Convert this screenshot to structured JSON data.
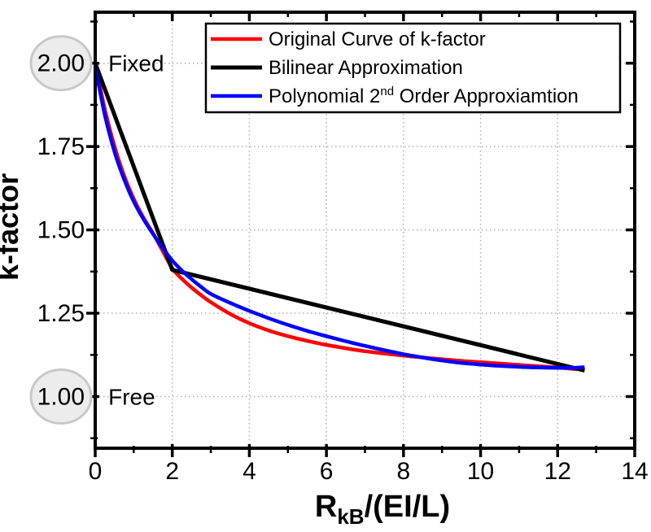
{
  "chart_data": {
    "type": "line",
    "title": "",
    "xlabel": "RkB/(EI/L)",
    "xlabel_parts": {
      "base": "R",
      "sub": "kB",
      "rest": "/(EI/L)"
    },
    "ylabel": "k-factor",
    "xlim": [
      0,
      14
    ],
    "ylim": [
      0.845,
      2.153
    ],
    "x_major_ticks": [
      0,
      2,
      4,
      6,
      8,
      10,
      12,
      14
    ],
    "x_major_tick_labels": [
      "0",
      "2",
      "4",
      "6",
      "8",
      "10",
      "12",
      "14"
    ],
    "x_minor_ticks": [
      1,
      3,
      5,
      7,
      9,
      11,
      13
    ],
    "y_major_ticks": [
      1.0,
      1.25,
      1.5,
      1.75,
      2.0
    ],
    "y_major_tick_labels": [
      "1.00",
      "1.25",
      "1.50",
      "1.75",
      "2.00"
    ],
    "y_minor_ticks": [
      0.875,
      1.125,
      1.375,
      1.625,
      1.875,
      2.125
    ],
    "grid": {
      "show": true,
      "style": "dotted",
      "color": "#b0b0b0"
    },
    "legend": {
      "position": "top-center-inside",
      "border_color": "#000000",
      "background": "#ffffff",
      "items": [
        {
          "label": "Original Curve of k-factor",
          "color": "#ff0000"
        },
        {
          "label": "Bilinear Approximation",
          "color": "#000000"
        },
        {
          "label": "Polynomial 2nd Order Approxiamtion",
          "color": "#0000ff",
          "label_parts": {
            "pre": "Polynomial 2",
            "sup": "nd",
            "post": " Order Approxiamtion"
          }
        }
      ]
    },
    "series": [
      {
        "name": "Original Curve of k-factor",
        "color": "#ff0000",
        "width": 4.5,
        "smooth": true,
        "points": [
          [
            0,
            2.0
          ],
          [
            0.25,
            1.862
          ],
          [
            0.5,
            1.751
          ],
          [
            0.75,
            1.663
          ],
          [
            1.0,
            1.593
          ],
          [
            1.25,
            1.537
          ],
          [
            1.5,
            1.49
          ],
          [
            1.75,
            1.437
          ],
          [
            2.0,
            1.385
          ],
          [
            2.25,
            1.353
          ],
          [
            2.5,
            1.327
          ],
          [
            2.75,
            1.304
          ],
          [
            3.0,
            1.283
          ],
          [
            3.5,
            1.248
          ],
          [
            4.0,
            1.22
          ],
          [
            4.5,
            1.198
          ],
          [
            5.0,
            1.181
          ],
          [
            5.5,
            1.167
          ],
          [
            6.0,
            1.155
          ],
          [
            6.5,
            1.145
          ],
          [
            7.0,
            1.136
          ],
          [
            7.5,
            1.129
          ],
          [
            8.0,
            1.123
          ],
          [
            8.5,
            1.117
          ],
          [
            9.0,
            1.112
          ],
          [
            9.5,
            1.107
          ],
          [
            10.0,
            1.103
          ],
          [
            10.5,
            1.099
          ],
          [
            11.0,
            1.095
          ],
          [
            11.5,
            1.091
          ],
          [
            12.0,
            1.087
          ],
          [
            12.4,
            1.083
          ],
          [
            12.7,
            1.081
          ]
        ]
      },
      {
        "name": "Bilinear Approximation",
        "color": "#000000",
        "width": 5,
        "smooth": false,
        "points": [
          [
            0,
            2.0
          ],
          [
            2.0,
            1.38
          ],
          [
            12.7,
            1.078
          ]
        ]
      },
      {
        "name": "Polynomial 2nd Order Approxiamtion",
        "color": "#0000ff",
        "width": 4.5,
        "smooth": true,
        "points": [
          [
            0,
            1.99
          ],
          [
            0.25,
            1.845
          ],
          [
            0.5,
            1.735
          ],
          [
            0.75,
            1.652
          ],
          [
            1.0,
            1.585
          ],
          [
            1.25,
            1.533
          ],
          [
            1.5,
            1.488
          ],
          [
            1.75,
            1.446
          ],
          [
            2.0,
            1.408
          ],
          [
            2.25,
            1.378
          ],
          [
            2.5,
            1.352
          ],
          [
            2.75,
            1.329
          ],
          [
            3.0,
            1.308
          ],
          [
            3.5,
            1.281
          ],
          [
            4.0,
            1.257
          ],
          [
            4.5,
            1.235
          ],
          [
            5.0,
            1.215
          ],
          [
            5.5,
            1.197
          ],
          [
            6.0,
            1.181
          ],
          [
            6.5,
            1.166
          ],
          [
            7.0,
            1.152
          ],
          [
            7.5,
            1.139
          ],
          [
            8.0,
            1.127
          ],
          [
            8.5,
            1.117
          ],
          [
            9.0,
            1.108
          ],
          [
            9.5,
            1.101
          ],
          [
            10.0,
            1.096
          ],
          [
            10.5,
            1.092
          ],
          [
            11.0,
            1.089
          ],
          [
            11.5,
            1.087
          ],
          [
            12.0,
            1.086
          ],
          [
            12.4,
            1.086
          ],
          [
            12.7,
            1.088
          ]
        ]
      }
    ],
    "annotations": [
      {
        "text": "Fixed",
        "x": 0.34,
        "y": 2.0,
        "anchor": "start"
      },
      {
        "text": "Free",
        "x": 0.34,
        "y": 1.0,
        "anchor": "start"
      }
    ],
    "highlight_ellipses": [
      {
        "around_tick_label": "2.00",
        "y": 2.0,
        "fill": "#ececec",
        "stroke": "#c8c8c8"
      },
      {
        "around_tick_label": "1.00",
        "y": 1.0,
        "fill": "#ececec",
        "stroke": "#c8c8c8"
      }
    ]
  },
  "colors": {
    "axis": "#000000",
    "text": "#000000",
    "grid": "#b0b0b0",
    "background": "#ffffff"
  }
}
